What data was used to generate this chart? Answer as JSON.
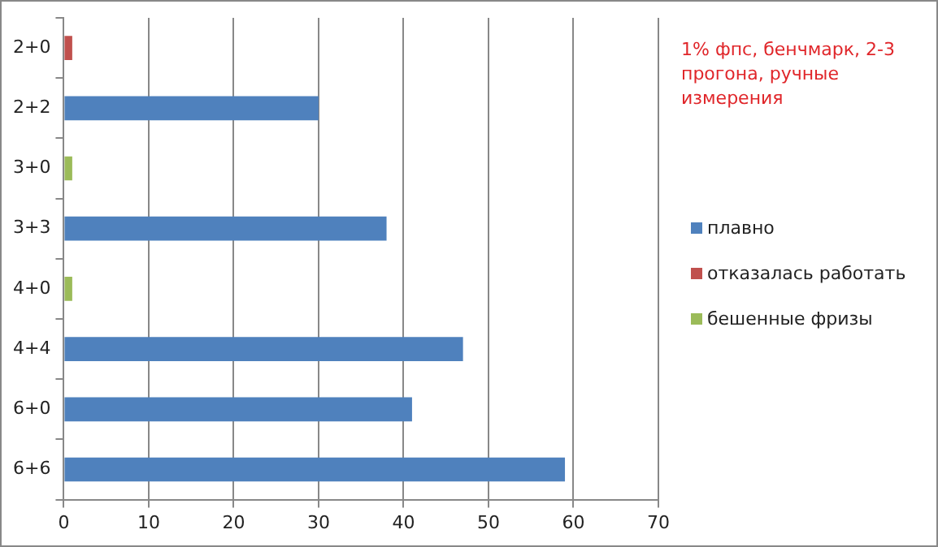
{
  "chart_data": {
    "type": "bar",
    "orientation": "horizontal",
    "stacked": true,
    "categories": [
      "2+0",
      "2+2",
      "3+0",
      "3+3",
      "4+0",
      "4+4",
      "6+0",
      "6+6"
    ],
    "series": [
      {
        "name": "плавно",
        "color": "#4f81bd",
        "values": [
          null,
          30,
          null,
          38,
          null,
          47,
          41,
          59
        ]
      },
      {
        "name": "отказалась работать",
        "color": "#c0504d",
        "values": [
          1,
          null,
          null,
          null,
          null,
          null,
          null,
          null
        ]
      },
      {
        "name": "бешенные  фризы",
        "color": "#9bbb59",
        "values": [
          null,
          null,
          1,
          null,
          1,
          null,
          null,
          null
        ]
      }
    ],
    "xlim": [
      0,
      70
    ],
    "xticks": [
      0,
      10,
      20,
      30,
      40,
      50,
      60,
      70
    ],
    "grid": "x",
    "legend": "right",
    "annotations": [
      "1% фпс, бенчмарк, 2-3 прогона, ручные измерения"
    ]
  }
}
